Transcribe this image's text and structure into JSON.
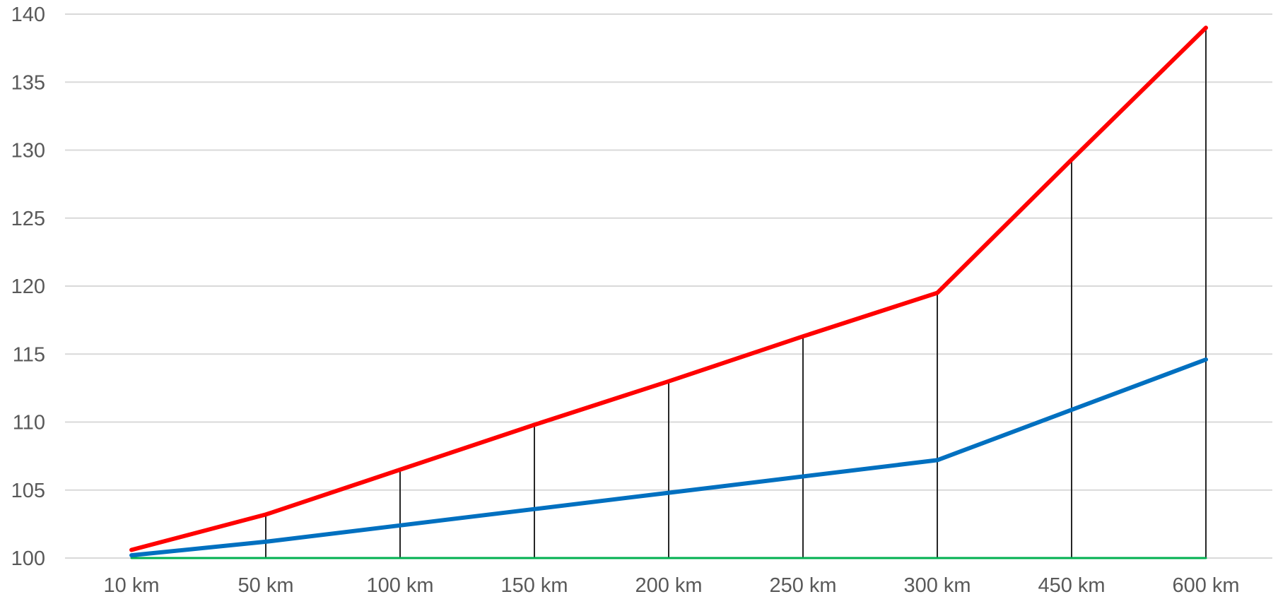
{
  "chart_data": {
    "type": "line",
    "categories": [
      "10 km",
      "50 km",
      "100 km",
      "150 km",
      "200 km",
      "250 km",
      "300 km",
      "450 km",
      "600 km"
    ],
    "series": [
      {
        "color": "#ff0000",
        "values": [
          100.6,
          103.2,
          106.5,
          109.8,
          113.0,
          116.3,
          119.5,
          129.3,
          139.0
        ]
      },
      {
        "color": "#0070c0",
        "values": [
          100.2,
          101.2,
          102.4,
          103.6,
          104.8,
          106.0,
          107.2,
          110.9,
          114.6
        ]
      },
      {
        "color": "#00b050",
        "values": [
          100,
          100,
          100,
          100,
          100,
          100,
          100,
          100,
          100
        ]
      }
    ],
    "ylim": [
      100,
      140
    ],
    "yticks": [
      100,
      105,
      110,
      115,
      120,
      125,
      130,
      135,
      140
    ],
    "grid": true,
    "legend": "none",
    "drop_lines": true,
    "colors": {
      "grid": "#d9d9d9",
      "drop_line": "#262626",
      "tick_text": "#595959"
    }
  }
}
